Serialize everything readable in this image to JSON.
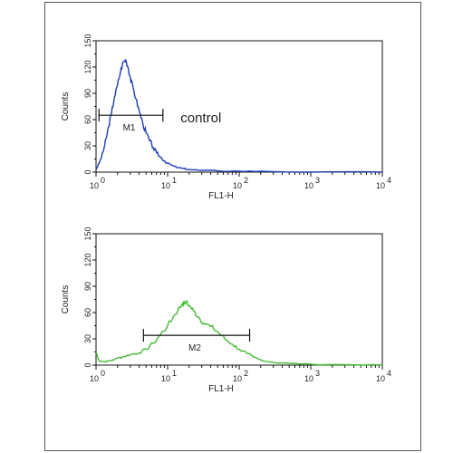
{
  "chart_data": [
    {
      "type": "line",
      "xscale": "log",
      "xlim": [
        1,
        10000
      ],
      "ylim": [
        0,
        150
      ],
      "xlabel": "FL1-H",
      "ylabel": "Counts",
      "xticks": [
        "10",
        "10",
        "10",
        "10",
        "10"
      ],
      "xtick_exponents": [
        "0",
        "1",
        "2",
        "3",
        "4"
      ],
      "yticks": [
        "0",
        "30",
        "60",
        "90",
        "120",
        "150"
      ],
      "grid": false,
      "series": [
        {
          "color": "#1f3fb5",
          "x": [
            1.0,
            1.1,
            1.2,
            1.3,
            1.4,
            1.5,
            1.65,
            1.8,
            2.0,
            2.2,
            2.4,
            2.6,
            2.8,
            3.0,
            3.3,
            3.6,
            4.0,
            4.5,
            5.0,
            5.6,
            6.3,
            7.0,
            8.0,
            9.0,
            10.0,
            12.0,
            14.0,
            17.0,
            20.0,
            30.0,
            50.0,
            100.0,
            200.0,
            1000.0,
            10000.0
          ],
          "y": [
            3,
            10,
            18,
            28,
            40,
            52,
            68,
            85,
            100,
            115,
            126,
            128,
            120,
            108,
            96,
            84,
            70,
            56,
            45,
            36,
            28,
            22,
            17,
            13,
            10,
            7,
            5,
            4,
            3,
            2,
            1.5,
            1,
            1,
            0,
            0
          ]
        }
      ],
      "gate": {
        "label": "M1",
        "x_start": 1.1,
        "x_end": 8.6,
        "y": 65
      },
      "annotation": {
        "text": "control",
        "x": 12,
        "y": 62
      }
    },
    {
      "type": "line",
      "xscale": "log",
      "xlim": [
        1,
        10000
      ],
      "ylim": [
        0,
        150
      ],
      "xlabel": "FL1-H",
      "ylabel": "Counts",
      "xticks": [
        "10",
        "10",
        "10",
        "10",
        "10"
      ],
      "xtick_exponents": [
        "0",
        "1",
        "2",
        "3",
        "4"
      ],
      "yticks": [
        "0",
        "30",
        "60",
        "90",
        "120",
        "150"
      ],
      "grid": false,
      "series": [
        {
          "color": "#44bb33",
          "x": [
            1.0,
            1.1,
            1.3,
            1.6,
            2.0,
            2.5,
            3.0,
            4.0,
            5.0,
            6.3,
            8.0,
            10.0,
            12.0,
            14.0,
            16.0,
            18.0,
            20.0,
            23.0,
            27.0,
            32.0,
            40.0,
            50.0,
            63.0,
            80.0,
            100.0,
            130.0,
            160.0,
            200.0,
            300.0,
            500.0,
            1000.0,
            3000.0,
            10000.0
          ],
          "y": [
            15,
            5,
            4,
            5,
            8,
            10,
            12,
            14,
            18,
            25,
            35,
            45,
            55,
            63,
            70,
            72,
            68,
            62,
            55,
            48,
            44,
            38,
            30,
            24,
            18,
            13,
            9,
            6,
            3,
            2,
            1,
            0.5,
            0
          ],
          "jitter_seed": 7
        }
      ],
      "gate": {
        "label": "M2",
        "x_start": 4.6,
        "x_end": 140,
        "y": 34
      }
    }
  ]
}
